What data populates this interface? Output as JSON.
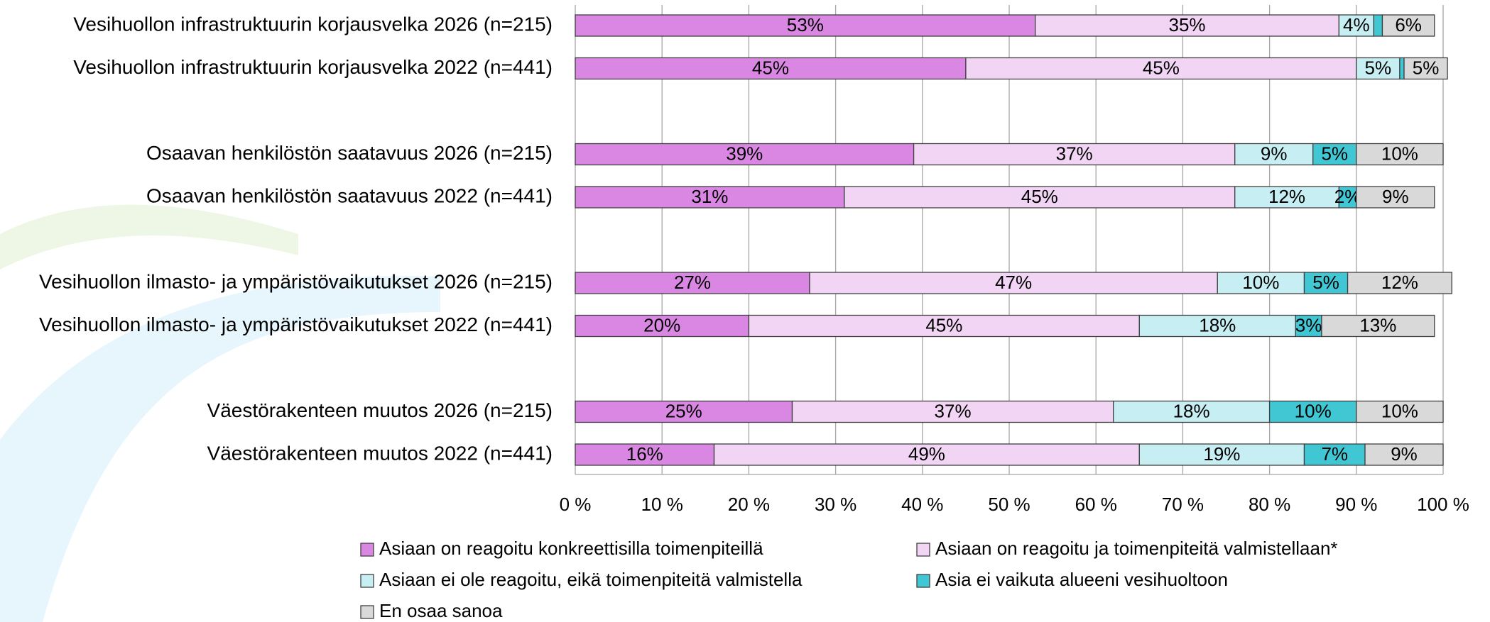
{
  "chart_data": {
    "type": "stacked-bar-horizontal",
    "categories": [
      "Vesihuollon infrastruktuurin korjausvelka 2026 (n=215)",
      "Vesihuollon infrastruktuurin korjausvelka 2022 (n=441)",
      null,
      "Osaavan henkilöstön saatavuus 2026 (n=215)",
      "Osaavan henkilöstön saatavuus 2022 (n=441)",
      null,
      "Vesihuollon ilmasto- ja ympäristövaikutukset 2026 (n=215)",
      "Vesihuollon ilmasto- ja ympäristövaikutukset 2022 (n=441)",
      null,
      "Väestörakenteen muutos 2026 (n=215)",
      "Väestörakenteen muutos 2022 (n=441)"
    ],
    "series": [
      {
        "name": "Asiaan on reagoitu konkreettisilla toimenpiteillä",
        "color": "#da87e3",
        "values": [
          53,
          45,
          null,
          39,
          31,
          null,
          27,
          20,
          null,
          25,
          16
        ],
        "value_labels": [
          "53%",
          "45%",
          null,
          "39%",
          "31%",
          null,
          "27%",
          "20%",
          null,
          "25%",
          "16%"
        ]
      },
      {
        "name": "Asiaan on reagoitu ja toimenpiteitä valmistellaan*",
        "color": "#f2d5f4",
        "values": [
          35,
          45,
          null,
          37,
          45,
          null,
          47,
          45,
          null,
          37,
          49
        ],
        "value_labels": [
          "35%",
          "45%",
          null,
          "37%",
          "45%",
          null,
          "47%",
          "45%",
          null,
          "37%",
          "49%"
        ]
      },
      {
        "name": "Asiaan ei ole reagoitu, eikä toimenpiteitä valmistella",
        "color": "#c6eef3",
        "values": [
          4,
          5,
          null,
          9,
          12,
          null,
          10,
          18,
          null,
          18,
          19
        ],
        "value_labels": [
          "4%",
          "5%",
          null,
          "9%",
          "12%",
          null,
          "10%",
          "18%",
          null,
          "18%",
          "19%"
        ]
      },
      {
        "name": "Asia ei vaikuta alueeni vesihuoltoon",
        "color": "#41c6d3",
        "values": [
          1,
          0.5,
          null,
          5,
          2,
          null,
          5,
          3,
          null,
          10,
          7
        ],
        "value_labels": [
          null,
          null,
          null,
          "5%",
          "2%",
          null,
          "5%",
          "3%",
          null,
          "10%",
          "7%"
        ]
      },
      {
        "name": "En osaa sanoa",
        "color": "#d9d9d9",
        "values": [
          6,
          5,
          null,
          10,
          9,
          null,
          12,
          13,
          null,
          10,
          9
        ],
        "value_labels": [
          "6%",
          "5%",
          null,
          "10%",
          "9%",
          null,
          "12%",
          "13%",
          null,
          "10%",
          "9%"
        ]
      }
    ],
    "xlim": [
      0,
      100
    ],
    "xticks": [
      {
        "value": 0,
        "label": "0 %"
      },
      {
        "value": 10,
        "label": "10 %"
      },
      {
        "value": 20,
        "label": "20 %"
      },
      {
        "value": 30,
        "label": "30 %"
      },
      {
        "value": 40,
        "label": "40 %"
      },
      {
        "value": 50,
        "label": "50 %"
      },
      {
        "value": 60,
        "label": "60 %"
      },
      {
        "value": 70,
        "label": "70 %"
      },
      {
        "value": 80,
        "label": "80 %"
      },
      {
        "value": 90,
        "label": "90 %"
      },
      {
        "value": 100,
        "label": "100 %"
      }
    ],
    "grid": true
  }
}
